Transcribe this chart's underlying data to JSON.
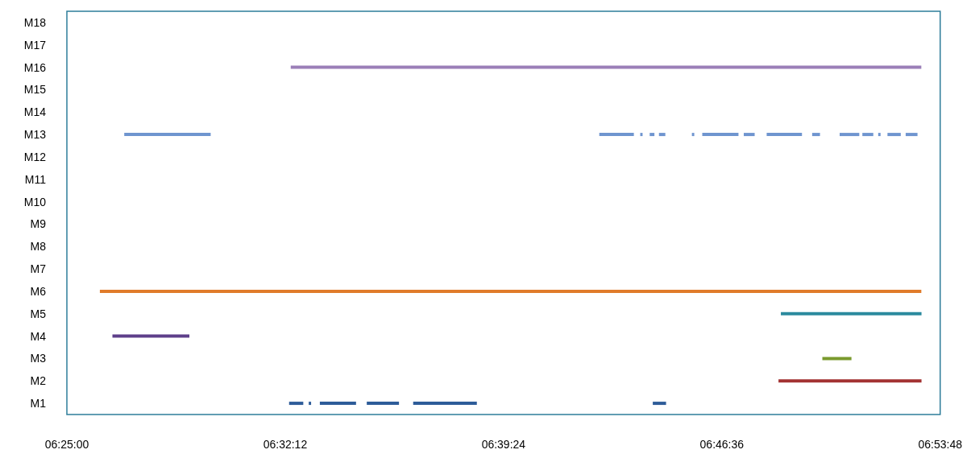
{
  "chart_data": {
    "type": "bar",
    "orientation": "horizontal",
    "categories": [
      "M18",
      "M17",
      "M16",
      "M15",
      "M14",
      "M13",
      "M12",
      "M11",
      "M10",
      "M9",
      "M8",
      "M7",
      "M6",
      "M5",
      "M4",
      "M3",
      "M2",
      "M1"
    ],
    "xlim": [
      6.416667,
      6.896667
    ],
    "xticks": [
      {
        "value": 6.416667,
        "label": "06:25:00"
      },
      {
        "value": 6.536667,
        "label": "06:32:12"
      },
      {
        "value": 6.656667,
        "label": "06:39:24"
      },
      {
        "value": 6.776667,
        "label": "06:46:36"
      },
      {
        "value": 6.896667,
        "label": "06:53:48"
      }
    ],
    "series": [
      {
        "base": [
          null,
          null,
          6.5397,
          null,
          null,
          6.4482,
          null,
          null,
          null,
          null,
          null,
          null,
          6.4348,
          6.8091,
          6.4417,
          6.8319,
          6.8078,
          6.5388
        ],
        "values": [
          null,
          null,
          0.3466,
          null,
          null,
          0.0475,
          null,
          null,
          null,
          null,
          null,
          null,
          0.4515,
          0.0773,
          0.0423,
          0.016,
          0.0786,
          0.0078
        ],
        "colors": [
          null,
          null,
          "#9b7fb8",
          null,
          null,
          "#6f95cf",
          null,
          null,
          null,
          null,
          null,
          null,
          "#e07b2a",
          "#2b8a9e",
          "#5e3f8a",
          "#7a9a2e",
          "#a33232",
          "#2e5c99"
        ]
      },
      {
        "base": [
          null,
          null,
          null,
          null,
          null,
          6.7093,
          null,
          null,
          null,
          null,
          null,
          null,
          null,
          null,
          null,
          null,
          null,
          6.5496
        ],
        "values": [
          null,
          null,
          null,
          null,
          null,
          0.019,
          null,
          null,
          null,
          null,
          null,
          null,
          null,
          null,
          null,
          null,
          null,
          0.0013
        ],
        "colors": [
          null,
          null,
          null,
          null,
          null,
          "#6f95cf",
          null,
          null,
          null,
          null,
          null,
          null,
          null,
          null,
          null,
          null,
          null,
          "#2e5c99"
        ]
      },
      {
        "base": [
          null,
          null,
          null,
          null,
          null,
          6.7318,
          null,
          null,
          null,
          null,
          null,
          null,
          null,
          null,
          null,
          null,
          null,
          6.5557
        ],
        "values": [
          null,
          null,
          null,
          null,
          null,
          0.0013,
          null,
          null,
          null,
          null,
          null,
          null,
          null,
          null,
          null,
          null,
          null,
          0.0199
        ],
        "colors": [
          null,
          null,
          null,
          null,
          null,
          "#6f95cf",
          null,
          null,
          null,
          null,
          null,
          null,
          null,
          null,
          null,
          null,
          null,
          "#2e5c99"
        ]
      },
      {
        "base": [
          null,
          null,
          null,
          null,
          null,
          6.737,
          null,
          null,
          null,
          null,
          null,
          null,
          null,
          null,
          null,
          null,
          null,
          6.5815
        ],
        "values": [
          null,
          null,
          null,
          null,
          null,
          0.0026,
          null,
          null,
          null,
          null,
          null,
          null,
          null,
          null,
          null,
          null,
          null,
          0.0177
        ],
        "colors": [
          null,
          null,
          null,
          null,
          null,
          "#6f95cf",
          null,
          null,
          null,
          null,
          null,
          null,
          null,
          null,
          null,
          null,
          null,
          "#2e5c99"
        ]
      },
      {
        "base": [
          null,
          null,
          null,
          null,
          null,
          6.7421,
          null,
          null,
          null,
          null,
          null,
          null,
          null,
          null,
          null,
          null,
          null,
          6.607
        ],
        "values": [
          null,
          null,
          null,
          null,
          null,
          0.0035,
          null,
          null,
          null,
          null,
          null,
          null,
          null,
          null,
          null,
          null,
          null,
          0.035
        ],
        "colors": [
          null,
          null,
          null,
          null,
          null,
          "#6f95cf",
          null,
          null,
          null,
          null,
          null,
          null,
          null,
          null,
          null,
          null,
          null,
          "#2e5c99"
        ]
      },
      {
        "base": [
          null,
          null,
          null,
          null,
          null,
          6.7602,
          null,
          null,
          null,
          null,
          null,
          null,
          null,
          null,
          null,
          null,
          null,
          6.7387
        ],
        "values": [
          null,
          null,
          null,
          null,
          null,
          0.0013,
          null,
          null,
          null,
          null,
          null,
          null,
          null,
          null,
          null,
          null,
          null,
          0.0073
        ],
        "colors": [
          null,
          null,
          null,
          null,
          null,
          "#6f95cf",
          null,
          null,
          null,
          null,
          null,
          null,
          null,
          null,
          null,
          null,
          null,
          "#2e5c99"
        ]
      },
      {
        "color": "#6f95cf",
        "base": [
          null,
          null,
          null,
          null,
          null,
          6.7659,
          null,
          null,
          null,
          null,
          null,
          null,
          null,
          null,
          null,
          null,
          null,
          null
        ],
        "values": [
          null,
          null,
          null,
          null,
          null,
          0.0199,
          null,
          null,
          null,
          null,
          null,
          null,
          null,
          null,
          null,
          null,
          null,
          null
        ]
      },
      {
        "color": "#6f95cf",
        "base": [
          null,
          null,
          null,
          null,
          null,
          6.7887,
          null,
          null,
          null,
          null,
          null,
          null,
          null,
          null,
          null,
          null,
          null,
          null
        ],
        "values": [
          null,
          null,
          null,
          null,
          null,
          0.006,
          null,
          null,
          null,
          null,
          null,
          null,
          null,
          null,
          null,
          null,
          null,
          null
        ]
      },
      {
        "color": "#6f95cf",
        "base": [
          null,
          null,
          null,
          null,
          null,
          6.8013,
          null,
          null,
          null,
          null,
          null,
          null,
          null,
          null,
          null,
          null,
          null,
          null
        ],
        "values": [
          null,
          null,
          null,
          null,
          null,
          0.0194,
          null,
          null,
          null,
          null,
          null,
          null,
          null,
          null,
          null,
          null,
          null,
          null
        ]
      },
      {
        "color": "#6f95cf",
        "base": [
          null,
          null,
          null,
          null,
          null,
          6.8263,
          null,
          null,
          null,
          null,
          null,
          null,
          null,
          null,
          null,
          null,
          null,
          null
        ],
        "values": [
          null,
          null,
          null,
          null,
          null,
          0.0043,
          null,
          null,
          null,
          null,
          null,
          null,
          null,
          null,
          null,
          null,
          null,
          null
        ]
      },
      {
        "color": "#6f95cf",
        "base": [
          null,
          null,
          null,
          null,
          null,
          6.8414,
          null,
          null,
          null,
          null,
          null,
          null,
          null,
          null,
          null,
          null,
          null,
          null
        ],
        "values": [
          null,
          null,
          null,
          null,
          null,
          0.0108,
          null,
          null,
          null,
          null,
          null,
          null,
          null,
          null,
          null,
          null,
          null,
          null
        ]
      },
      {
        "color": "#6f95cf",
        "base": [
          null,
          null,
          null,
          null,
          null,
          6.8539,
          null,
          null,
          null,
          null,
          null,
          null,
          null,
          null,
          null,
          null,
          null,
          null
        ],
        "values": [
          null,
          null,
          null,
          null,
          null,
          0.006,
          null,
          null,
          null,
          null,
          null,
          null,
          null,
          null,
          null,
          null,
          null,
          null
        ]
      },
      {
        "color": "#6f95cf",
        "base": [
          null,
          null,
          null,
          null,
          null,
          6.8626,
          null,
          null,
          null,
          null,
          null,
          null,
          null,
          null,
          null,
          null,
          null,
          null
        ],
        "values": [
          null,
          null,
          null,
          null,
          null,
          0.0013,
          null,
          null,
          null,
          null,
          null,
          null,
          null,
          null,
          null,
          null,
          null,
          null
        ]
      },
      {
        "color": "#6f95cf",
        "base": [
          null,
          null,
          null,
          null,
          null,
          6.8677,
          null,
          null,
          null,
          null,
          null,
          null,
          null,
          null,
          null,
          null,
          null,
          null
        ],
        "values": [
          null,
          null,
          null,
          null,
          null,
          0.0073,
          null,
          null,
          null,
          null,
          null,
          null,
          null,
          null,
          null,
          null,
          null,
          null
        ]
      },
      {
        "color": "#6f95cf",
        "base": [
          null,
          null,
          null,
          null,
          null,
          6.8777,
          null,
          null,
          null,
          null,
          null,
          null,
          null,
          null,
          null,
          null,
          null,
          null
        ],
        "values": [
          null,
          null,
          null,
          null,
          null,
          0.0065,
          null,
          null,
          null,
          null,
          null,
          null,
          null,
          null,
          null,
          null,
          null,
          null
        ]
      }
    ]
  }
}
